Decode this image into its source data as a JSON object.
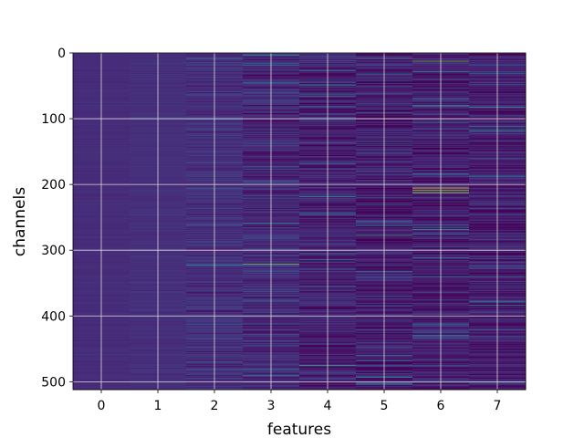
{
  "chart_data": {
    "type": "heatmap",
    "title": "",
    "xlabel": "features",
    "ylabel": "channels",
    "xlim": [
      -0.5,
      7.5
    ],
    "ylim": [
      512,
      0
    ],
    "y_inverted": true,
    "grid": true,
    "colormap": "viridis",
    "x_ticks": [
      0,
      1,
      2,
      3,
      4,
      5,
      6,
      7
    ],
    "y_ticks": [
      0,
      100,
      200,
      300,
      400,
      500
    ],
    "columns": [
      {
        "feature": 0,
        "base": 0.16,
        "noise": 0.02,
        "outliers": []
      },
      {
        "feature": 1,
        "base": 0.17,
        "noise": 0.03,
        "outliers": []
      },
      {
        "feature": 2,
        "base": 0.17,
        "noise": 0.09,
        "outliers": [
          {
            "channel": 8,
            "value": 0.45
          },
          {
            "channel": 205,
            "value": 0.5
          },
          {
            "channel": 322,
            "value": 0.55
          },
          {
            "channel": 412,
            "value": 0.45
          },
          {
            "channel": 470,
            "value": 0.4
          }
        ]
      },
      {
        "feature": 3,
        "base": 0.15,
        "noise": 0.14,
        "outliers": [
          {
            "channel": 18,
            "value": 0.6
          },
          {
            "channel": 45,
            "value": 0.5
          },
          {
            "channel": 258,
            "value": 0.65
          },
          {
            "channel": 321,
            "value": 0.85
          },
          {
            "channel": 480,
            "value": 0.6
          },
          {
            "channel": 490,
            "value": 0.5
          }
        ]
      },
      {
        "feature": 4,
        "base": 0.12,
        "noise": 0.15,
        "outliers": [
          {
            "channel": 48,
            "value": 0.6
          },
          {
            "channel": 66,
            "value": 0.6
          },
          {
            "channel": 113,
            "value": 0.02
          },
          {
            "channel": 115,
            "value": 0.02
          },
          {
            "channel": 218,
            "value": 0.65
          },
          {
            "channel": 246,
            "value": 0.55
          },
          {
            "channel": 355,
            "value": 0.5
          },
          {
            "channel": 475,
            "value": 0.7
          }
        ]
      },
      {
        "feature": 5,
        "base": 0.1,
        "noise": 0.17,
        "outliers": [
          {
            "channel": 8,
            "value": 0.45
          },
          {
            "channel": 90,
            "value": 0.5
          },
          {
            "channel": 152,
            "value": 0.5
          },
          {
            "channel": 210,
            "value": 0.05
          },
          {
            "channel": 262,
            "value": 0.6
          },
          {
            "channel": 277,
            "value": 0.75
          },
          {
            "channel": 332,
            "value": 0.5
          },
          {
            "channel": 492,
            "value": 0.6
          }
        ]
      },
      {
        "feature": 6,
        "base": 0.1,
        "noise": 0.17,
        "outliers": [
          {
            "channel": 12,
            "value": 0.85
          },
          {
            "channel": 28,
            "value": 0.6
          },
          {
            "channel": 80,
            "value": 0.7
          },
          {
            "channel": 105,
            "value": 0.5
          },
          {
            "channel": 205,
            "value": 0.98
          },
          {
            "channel": 208,
            "value": 0.9
          },
          {
            "channel": 212,
            "value": 0.9
          },
          {
            "channel": 268,
            "value": 0.7
          },
          {
            "channel": 340,
            "value": 0.55
          }
        ]
      },
      {
        "feature": 7,
        "base": 0.11,
        "noise": 0.16,
        "outliers": [
          {
            "channel": 48,
            "value": 0.5
          },
          {
            "channel": 82,
            "value": 0.65
          },
          {
            "channel": 118,
            "value": 0.55
          },
          {
            "channel": 340,
            "value": 0.5
          },
          {
            "channel": 378,
            "value": 0.55
          },
          {
            "channel": 500,
            "value": 0.5
          }
        ]
      }
    ]
  }
}
